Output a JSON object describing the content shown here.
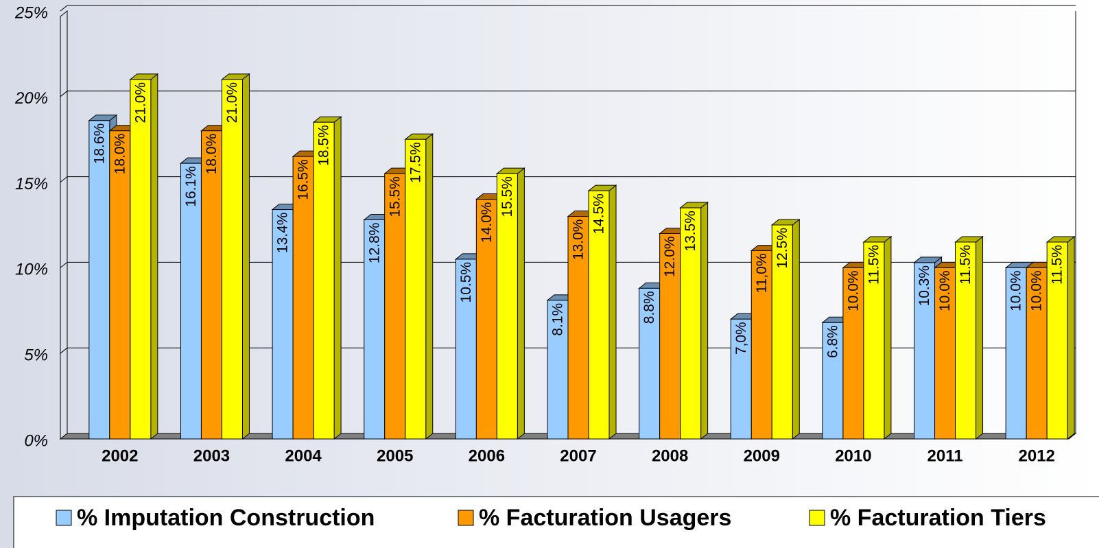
{
  "chart_data": {
    "type": "bar3d",
    "categories": [
      "2002",
      "2003",
      "2004",
      "2005",
      "2006",
      "2007",
      "2008",
      "2009",
      "2010",
      "2011",
      "2012"
    ],
    "series": [
      {
        "name": "% Imputation Construction",
        "color": "#99ccff",
        "side": "#6b8fb3",
        "values": [
          18.6,
          16.1,
          13.4,
          12.8,
          10.5,
          8.1,
          8.8,
          7.0,
          6.8,
          10.3,
          10.0
        ],
        "value_labels": [
          "18.6%",
          "16.1%",
          "13.4%",
          "12.8%",
          "10.5%",
          "8.1%",
          "8.8%",
          "7,0%",
          "6.8%",
          "10.3%",
          "10.0%"
        ]
      },
      {
        "name": "% Facturation Usagers",
        "color": "#ff9900",
        "side": "#b36b00",
        "values": [
          18.0,
          18.0,
          16.5,
          15.5,
          14.0,
          13.0,
          12.0,
          11.0,
          10.0,
          10.0,
          10.0
        ],
        "value_labels": [
          "18.0%",
          "18.0%",
          "16.5%",
          "15.5%",
          "14.0%",
          "13.0%",
          "12.0%",
          "11,0%",
          "10.0%",
          "10.0%",
          "10.0%"
        ]
      },
      {
        "name": "% Facturation Tiers",
        "color": "#ffff00",
        "side": "#b3b300",
        "values": [
          21.0,
          21.0,
          18.5,
          17.5,
          15.5,
          14.5,
          13.5,
          12.5,
          11.5,
          11.5,
          11.5
        ],
        "value_labels": [
          "21.0%",
          "21.0%",
          "18.5%",
          "17.5%",
          "15.5%",
          "14.5%",
          "13.5%",
          "12.5%",
          "11.5%",
          "11.5%",
          "11.5%"
        ]
      }
    ],
    "ylim": [
      0,
      25
    ],
    "yticks": [
      {
        "value": 0,
        "label": "0%"
      },
      {
        "value": 5,
        "label": "5%"
      },
      {
        "value": 10,
        "label": "10%"
      },
      {
        "value": 15,
        "label": "15%"
      },
      {
        "value": 20,
        "label": "20%"
      },
      {
        "value": 25,
        "label": "25%"
      }
    ],
    "grid": true,
    "legend": "bottom"
  }
}
